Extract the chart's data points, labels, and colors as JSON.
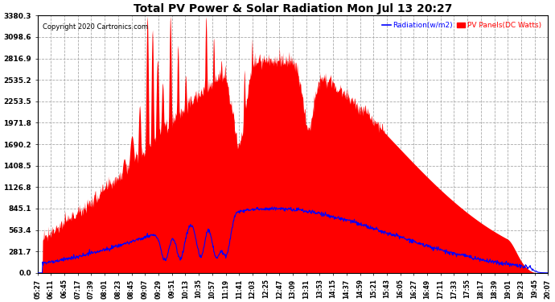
{
  "title": "Total PV Power & Solar Radiation Mon Jul 13 20:27",
  "copyright": "Copyright 2020 Cartronics.com",
  "legend_radiation": "Radiation(w/m2)",
  "legend_pv": "PV Panels(DC Watts)",
  "background_color": "#ffffff",
  "plot_bg_color": "#ffffff",
  "grid_color": "#aaaaaa",
  "pv_color": "#ff0000",
  "radiation_color": "#0000ff",
  "y_max": 3380.3,
  "y_min": 0.0,
  "y_ticks": [
    0.0,
    281.7,
    563.4,
    845.1,
    1126.8,
    1408.5,
    1690.2,
    1971.8,
    2253.5,
    2535.2,
    2816.9,
    3098.6,
    3380.3
  ],
  "x_labels": [
    "05:27",
    "06:11",
    "06:45",
    "07:17",
    "07:39",
    "08:01",
    "08:23",
    "08:45",
    "09:07",
    "09:29",
    "09:51",
    "10:13",
    "10:35",
    "10:57",
    "11:19",
    "11:41",
    "12:03",
    "12:25",
    "12:47",
    "13:09",
    "13:31",
    "13:53",
    "14:15",
    "14:37",
    "14:59",
    "15:21",
    "15:43",
    "16:05",
    "16:27",
    "16:49",
    "17:11",
    "17:33",
    "17:55",
    "18:17",
    "18:39",
    "19:01",
    "19:23",
    "19:45",
    "20:07"
  ],
  "figsize": [
    6.9,
    3.75
  ],
  "dpi": 100
}
